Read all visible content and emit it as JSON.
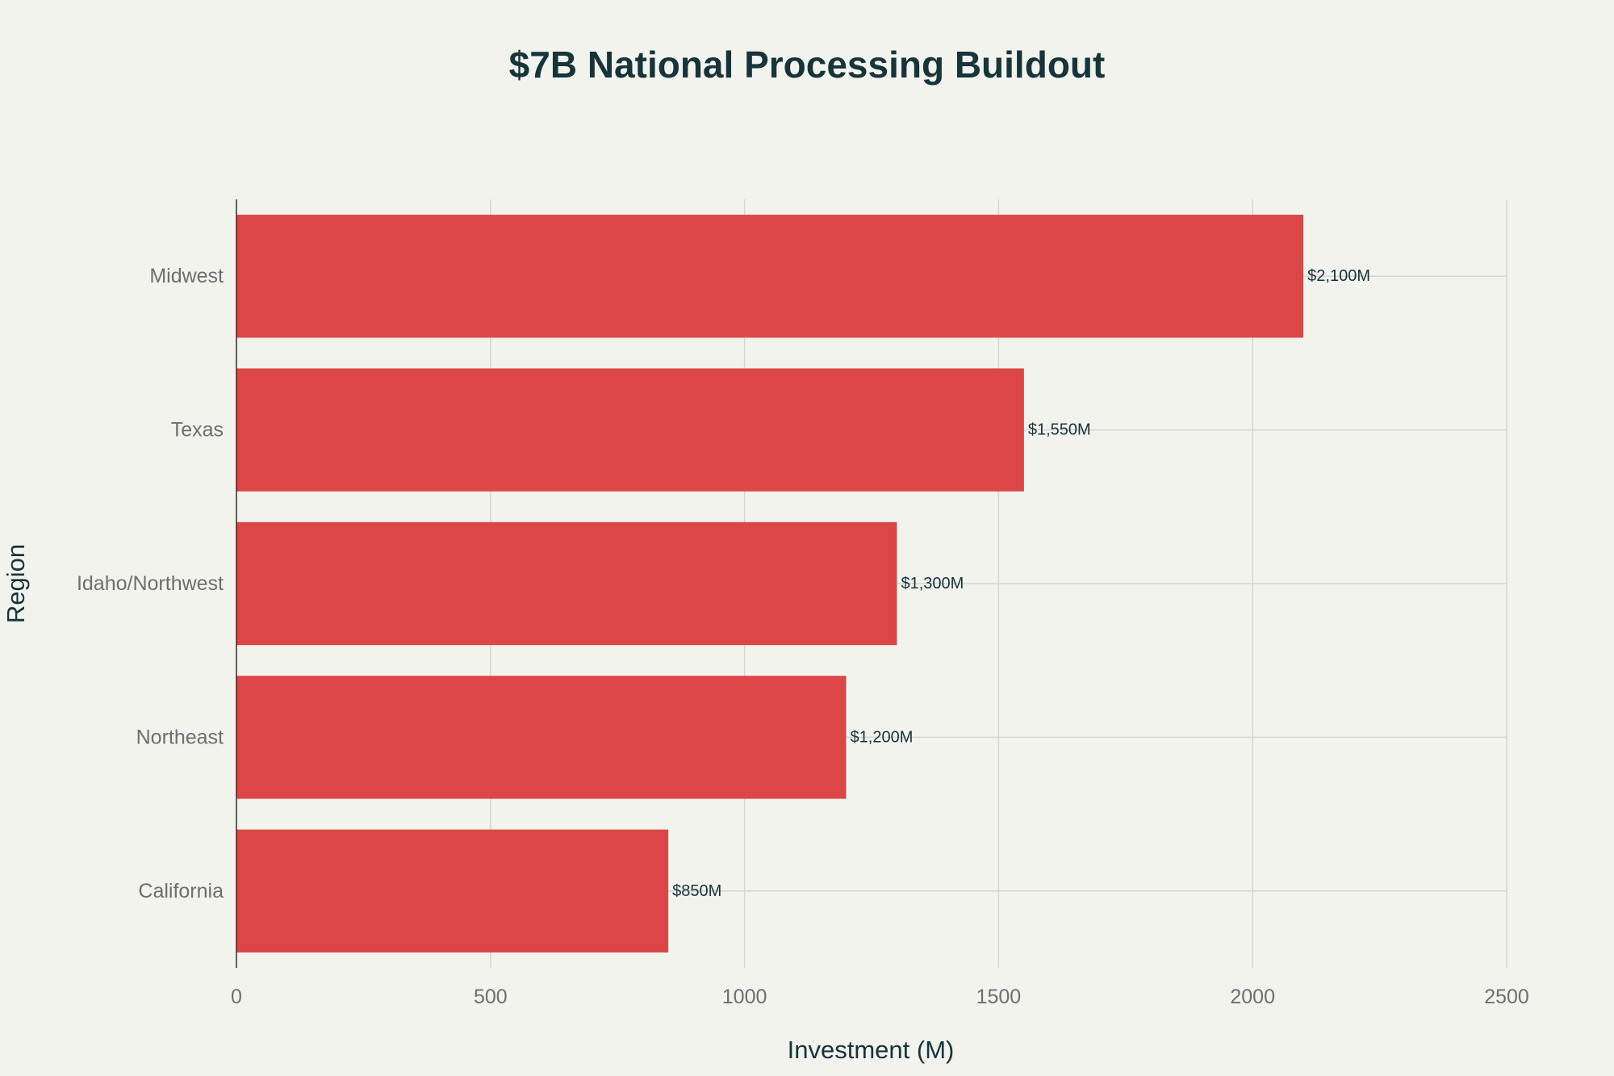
{
  "chart_data": {
    "type": "bar",
    "orientation": "horizontal",
    "title": "$7B National Processing Buildout",
    "xlabel": "Investment (M)",
    "ylabel": "Region",
    "categories": [
      "Midwest",
      "Texas",
      "Idaho/Northwest",
      "Northeast",
      "California"
    ],
    "values": [
      2100,
      1550,
      1300,
      1200,
      850
    ],
    "data_labels": [
      "$2,100M",
      "$1,550M",
      "$1,300M",
      "$1,200M",
      "$850M"
    ],
    "xlim": [
      0,
      2500
    ],
    "xticks": [
      0,
      500,
      1000,
      1500,
      2000,
      2500
    ],
    "xtick_labels": [
      "0",
      "500",
      "1000",
      "1500",
      "2000",
      "2500"
    ],
    "grid": true,
    "legend": "none",
    "colors": {
      "bar": "#dc4647",
      "background": "#f3f3ee",
      "grid": "#d4d6d2",
      "title": "#16343a",
      "tick": "#6a6f70"
    }
  }
}
